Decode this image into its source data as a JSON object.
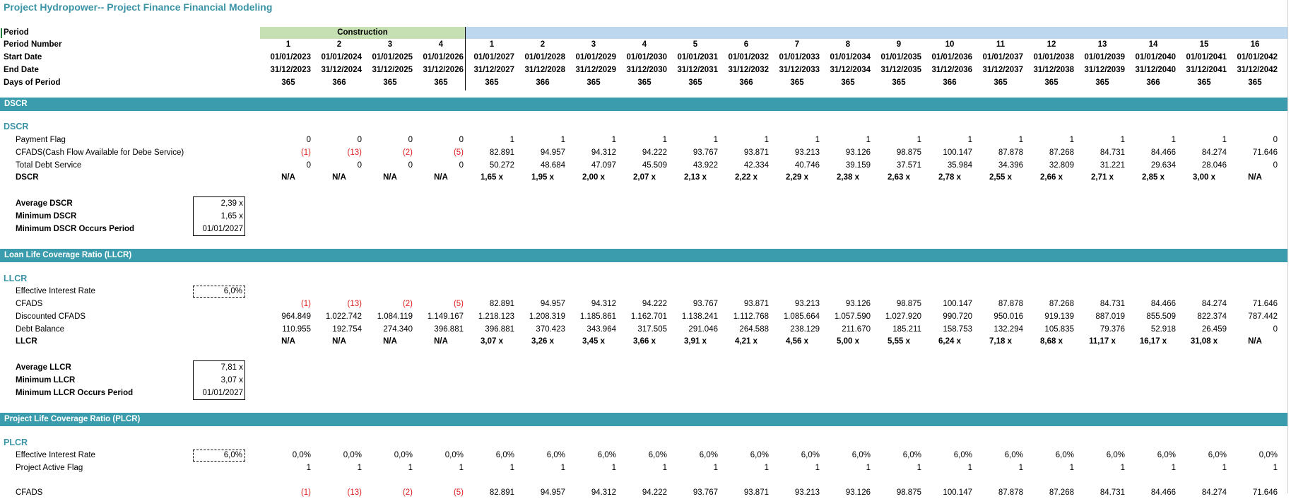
{
  "title": "Project Hydropower-- Project Finance Financial Modeling",
  "header": {
    "period_label": "Period",
    "period_number_label": "Period Number",
    "start_date_label": "Start Date",
    "end_date_label": "End Date",
    "days_label": "Days of Period",
    "construction_label": "Construction",
    "period_numbers": [
      "1",
      "2",
      "3",
      "4",
      "1",
      "2",
      "3",
      "4",
      "5",
      "6",
      "7",
      "8",
      "9",
      "10",
      "11",
      "12",
      "13",
      "14",
      "15",
      "16"
    ],
    "start_dates": [
      "01/01/2023",
      "01/01/2024",
      "01/01/2025",
      "01/01/2026",
      "01/01/2027",
      "01/01/2028",
      "01/01/2029",
      "01/01/2030",
      "01/01/2031",
      "01/01/2032",
      "01/01/2033",
      "01/01/2034",
      "01/01/2035",
      "01/01/2036",
      "01/01/2037",
      "01/01/2038",
      "01/01/2039",
      "01/01/2040",
      "01/01/2041",
      "01/01/2042"
    ],
    "end_dates": [
      "31/12/2023",
      "31/12/2024",
      "31/12/2025",
      "31/12/2026",
      "31/12/2027",
      "31/12/2028",
      "31/12/2029",
      "31/12/2030",
      "31/12/2031",
      "31/12/2032",
      "31/12/2033",
      "31/12/2034",
      "31/12/2035",
      "31/12/2036",
      "31/12/2037",
      "31/12/2038",
      "31/12/2039",
      "31/12/2040",
      "31/12/2041",
      "31/12/2042"
    ],
    "days": [
      "365",
      "366",
      "365",
      "365",
      "365",
      "366",
      "365",
      "365",
      "365",
      "366",
      "365",
      "365",
      "365",
      "366",
      "365",
      "365",
      "365",
      "366",
      "365",
      "365"
    ]
  },
  "dscr": {
    "bar_title": "DSCR",
    "heading": "DSCR",
    "payment_flag_label": "Payment Flag",
    "payment_flag": [
      "0",
      "0",
      "0",
      "0",
      "1",
      "1",
      "1",
      "1",
      "1",
      "1",
      "1",
      "1",
      "1",
      "1",
      "1",
      "1",
      "1",
      "1",
      "1",
      "0"
    ],
    "cfads_label": "CFADS(Cash Flow Available for Debe Service)",
    "cfads": [
      "(1)",
      "(13)",
      "(2)",
      "(5)",
      "82.891",
      "94.957",
      "94.312",
      "94.222",
      "93.767",
      "93.871",
      "93.213",
      "93.126",
      "98.875",
      "100.147",
      "87.878",
      "87.268",
      "84.731",
      "84.466",
      "84.274",
      "71.646"
    ],
    "tds_label": "Total Debt Service",
    "tds": [
      "0",
      "0",
      "0",
      "0",
      "50.272",
      "48.684",
      "47.097",
      "45.509",
      "43.922",
      "42.334",
      "40.746",
      "39.159",
      "37.571",
      "35.984",
      "34.396",
      "32.809",
      "31.221",
      "29.634",
      "28.046",
      "0"
    ],
    "dscr_label": "DSCR",
    "dscr": [
      "N/A",
      "N/A",
      "N/A",
      "N/A",
      "1,65 x",
      "1,95 x",
      "2,00 x",
      "2,07 x",
      "2,13 x",
      "2,22 x",
      "2,29 x",
      "2,38 x",
      "2,63 x",
      "2,78 x",
      "2,55 x",
      "2,66 x",
      "2,71 x",
      "2,85 x",
      "3,00 x",
      "N/A"
    ],
    "avg_label": "Average DSCR",
    "avg": "2,39 x",
    "min_label": "Minimum DSCR",
    "min": "1,65 x",
    "min_period_label": "Minimum DSCR Occurs Period",
    "min_period": "01/01/2027"
  },
  "llcr": {
    "bar_title": "Loan Life Coverage Ratio (LLCR)",
    "heading": "LLCR",
    "eir_label": "Effective Interest Rate",
    "eir": "6,0%",
    "cfads_label": "CFADS",
    "cfads": [
      "(1)",
      "(13)",
      "(2)",
      "(5)",
      "82.891",
      "94.957",
      "94.312",
      "94.222",
      "93.767",
      "93.871",
      "93.213",
      "93.126",
      "98.875",
      "100.147",
      "87.878",
      "87.268",
      "84.731",
      "84.466",
      "84.274",
      "71.646"
    ],
    "disc_label": "Discounted CFADS",
    "disc": [
      "964.849",
      "1.022.742",
      "1.084.119",
      "1.149.167",
      "1.218.123",
      "1.208.319",
      "1.185.861",
      "1.162.701",
      "1.138.241",
      "1.112.768",
      "1.085.664",
      "1.057.590",
      "1.027.920",
      "990.720",
      "950.016",
      "919.139",
      "887.019",
      "855.509",
      "822.374",
      "787.442"
    ],
    "debt_label": "Debt Balance",
    "debt": [
      "110.955",
      "192.754",
      "274.340",
      "396.881",
      "396.881",
      "370.423",
      "343.964",
      "317.505",
      "291.046",
      "264.588",
      "238.129",
      "211.670",
      "185.211",
      "158.753",
      "132.294",
      "105.835",
      "79.376",
      "52.918",
      "26.459",
      "0"
    ],
    "llcr_label": "LLCR",
    "llcr": [
      "N/A",
      "N/A",
      "N/A",
      "N/A",
      "3,07 x",
      "3,26 x",
      "3,45 x",
      "3,66 x",
      "3,91 x",
      "4,21 x",
      "4,56 x",
      "5,00 x",
      "5,55 x",
      "6,24 x",
      "7,18 x",
      "8,68 x",
      "11,17 x",
      "16,17 x",
      "31,08 x",
      "N/A"
    ],
    "avg_label": "Average LLCR",
    "avg": "7,81 x",
    "min_label": "Minimum LLCR",
    "min": "3,07 x",
    "min_period_label": "Minimum LLCR Occurs Period",
    "min_period": "01/01/2027"
  },
  "plcr": {
    "bar_title": "Project  Life Coverage Ratio (PLCR)",
    "heading": "PLCR",
    "eir_label": "Effective Interest Rate",
    "eir": "6,0%",
    "rates": [
      "0,0%",
      "0,0%",
      "0,0%",
      "0,0%",
      "6,0%",
      "6,0%",
      "6,0%",
      "6,0%",
      "6,0%",
      "6,0%",
      "6,0%",
      "6,0%",
      "6,0%",
      "6,0%",
      "6,0%",
      "6,0%",
      "6,0%",
      "6,0%",
      "6,0%",
      "0,0%"
    ],
    "active_label": "Project Active Flag",
    "active": [
      "1",
      "1",
      "1",
      "1",
      "1",
      "1",
      "1",
      "1",
      "1",
      "1",
      "1",
      "1",
      "1",
      "1",
      "1",
      "1",
      "1",
      "1",
      "1",
      "1"
    ],
    "cfads_label": "CFADS",
    "cfads": [
      "(1)",
      "(13)",
      "(2)",
      "(5)",
      "82.891",
      "94.957",
      "94.312",
      "94.222",
      "93.767",
      "93.871",
      "93.213",
      "93.126",
      "98.875",
      "100.147",
      "87.878",
      "87.268",
      "84.731",
      "84.466",
      "84.274",
      "71.646"
    ]
  }
}
